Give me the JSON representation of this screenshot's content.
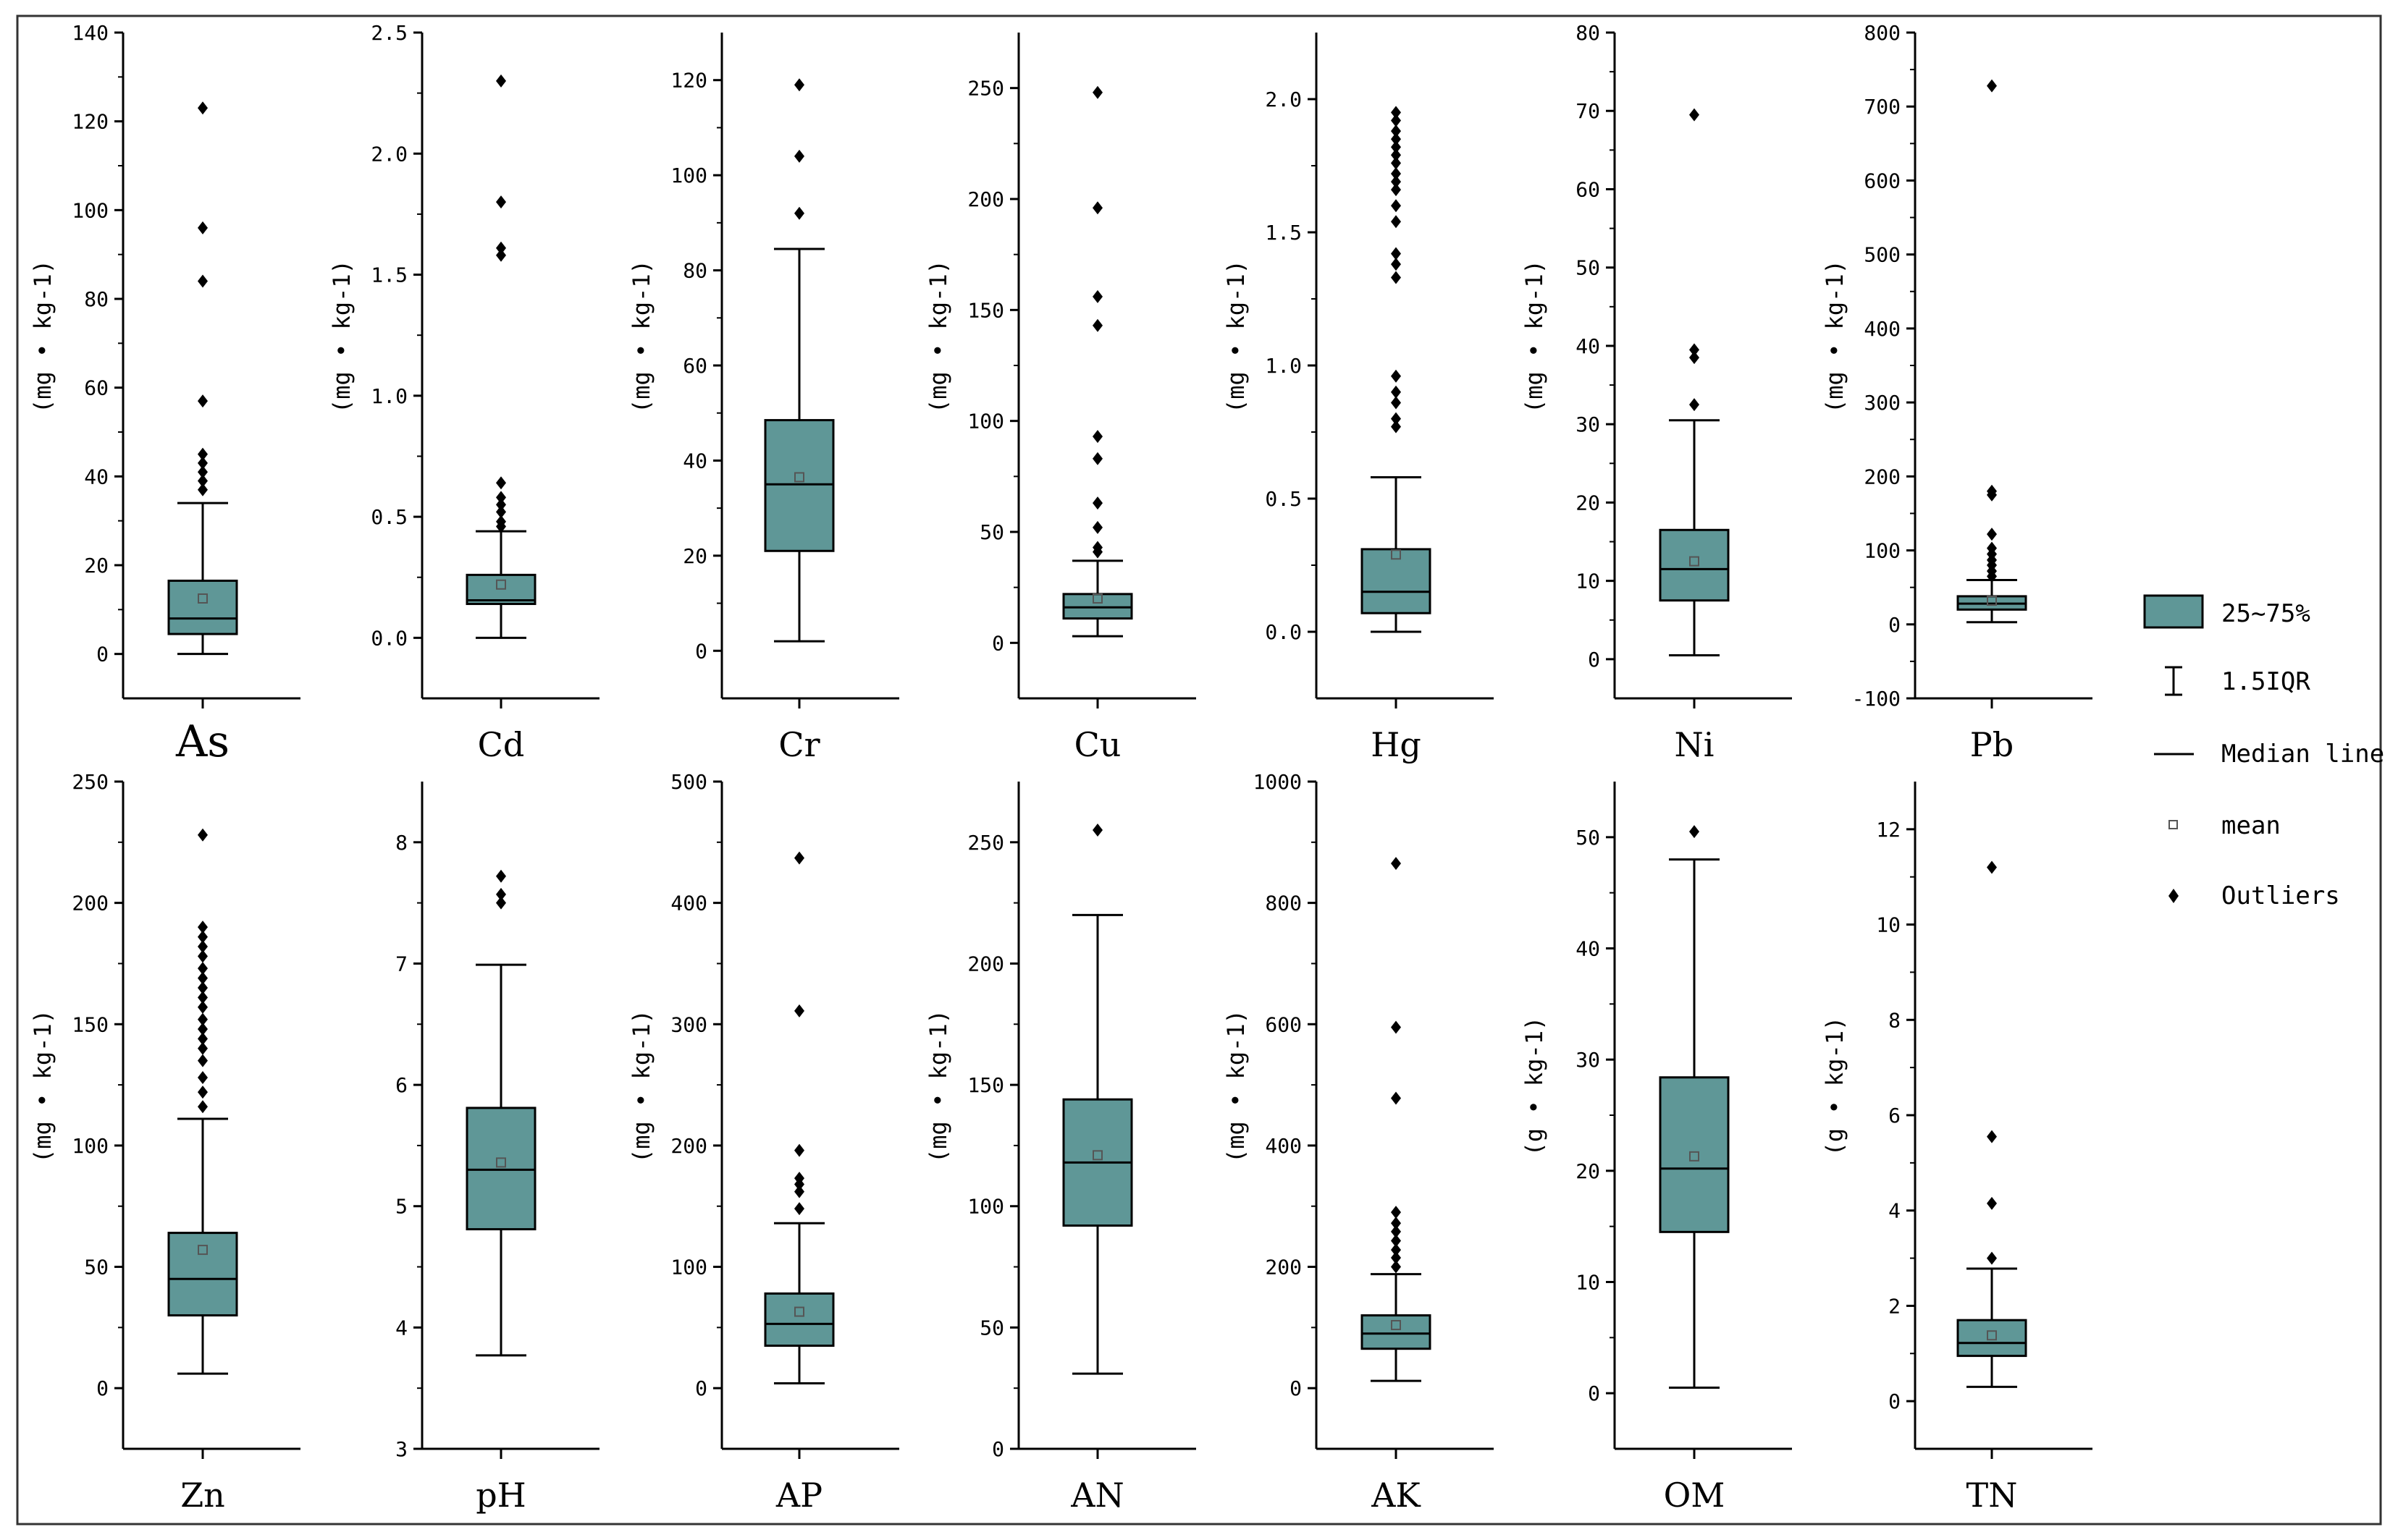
{
  "colors": {
    "box_fill": "#5f9797",
    "stroke": "#000000",
    "mean_marker": "#555555",
    "background": "#ffffff"
  },
  "legend": {
    "box_label": "25~75%",
    "iqr_label": "1.5IQR",
    "median_label": "Median line",
    "mean_label": "mean",
    "outlier_label": "Outliers"
  },
  "chart_data": [
    {
      "type": "box",
      "category": "As",
      "ylabel": "(mg • kg-1)",
      "ylim": [
        -10,
        140
      ],
      "ticks": [
        0,
        20,
        40,
        60,
        80,
        100,
        120,
        140
      ],
      "whisker_low": 0,
      "q1": 4.5,
      "median": 8,
      "q3": 16.5,
      "whisker_high": 34,
      "mean": 12.5,
      "outliers": [
        37,
        39,
        41,
        43,
        45,
        57,
        84,
        96,
        123
      ]
    },
    {
      "type": "box",
      "category": "Cd",
      "ylabel": "(mg • kg-1)",
      "ylim": [
        -0.25,
        2.5
      ],
      "ticks": [
        0.0,
        0.5,
        1.0,
        1.5,
        2.0,
        2.5
      ],
      "whisker_low": 0,
      "q1": 0.14,
      "median": 0.155,
      "q3": 0.26,
      "whisker_high": 0.44,
      "mean": 0.22,
      "outliers": [
        0.46,
        0.48,
        0.52,
        0.55,
        0.58,
        0.64,
        1.58,
        1.61,
        1.8,
        2.3
      ]
    },
    {
      "type": "box",
      "category": "Cr",
      "ylabel": "(mg • kg-1)",
      "ylim": [
        -10,
        130
      ],
      "ticks": [
        0,
        20,
        40,
        60,
        80,
        100,
        120
      ],
      "whisker_low": 2,
      "q1": 21,
      "median": 35,
      "q3": 48.5,
      "whisker_high": 84.5,
      "mean": 36.5,
      "outliers": [
        92,
        104,
        119
      ]
    },
    {
      "type": "box",
      "category": "Cu",
      "ylabel": "(mg • kg-1)",
      "ylim": [
        -25,
        275
      ],
      "ticks": [
        0,
        50,
        100,
        150,
        200,
        250
      ],
      "whisker_low": 3,
      "q1": 11,
      "median": 16,
      "q3": 22,
      "whisker_high": 37,
      "mean": 20,
      "outliers": [
        41,
        43,
        52,
        63,
        83,
        93,
        143,
        156,
        196,
        248
      ]
    },
    {
      "type": "box",
      "category": "Hg",
      "ylabel": "(mg • kg-1)",
      "ylim": [
        -0.25,
        2.25
      ],
      "ticks": [
        0.0,
        0.5,
        1.0,
        1.5,
        2.0
      ],
      "whisker_low": 0,
      "q1": 0.07,
      "median": 0.15,
      "q3": 0.31,
      "whisker_high": 0.58,
      "mean": 0.29,
      "outliers": [
        0.77,
        0.8,
        0.86,
        0.9,
        0.96,
        1.33,
        1.38,
        1.42,
        1.54,
        1.6,
        1.66,
        1.69,
        1.72,
        1.76,
        1.79,
        1.82,
        1.85,
        1.88,
        1.92,
        1.95
      ]
    },
    {
      "type": "box",
      "category": "Ni",
      "ylabel": "(mg • kg-1)",
      "ylim": [
        -5,
        80
      ],
      "ticks": [
        0,
        10,
        20,
        30,
        40,
        50,
        60,
        70,
        80
      ],
      "whisker_low": 0.5,
      "q1": 7.5,
      "median": 11.5,
      "q3": 16.5,
      "whisker_high": 30.5,
      "mean": 12.5,
      "outliers": [
        32.5,
        38.5,
        39.5,
        69.5
      ]
    },
    {
      "type": "box",
      "category": "Pb",
      "ylabel": "(mg • kg-1)",
      "ylim": [
        -100,
        800
      ],
      "ticks": [
        -100,
        0,
        100,
        200,
        300,
        400,
        500,
        600,
        700,
        800
      ],
      "whisker_low": 3,
      "q1": 20,
      "median": 28,
      "q3": 38,
      "whisker_high": 60,
      "mean": 32,
      "outliers": [
        65,
        72,
        80,
        87,
        95,
        103,
        122,
        175,
        180,
        728
      ]
    },
    {
      "type": "box",
      "category": "Zn",
      "ylabel": "(mg • kg-1)",
      "ylim": [
        -25,
        250
      ],
      "ticks": [
        0,
        50,
        100,
        150,
        200,
        250
      ],
      "whisker_low": 6,
      "q1": 30,
      "median": 45,
      "q3": 64,
      "whisker_high": 111,
      "mean": 57,
      "outliers": [
        116,
        122,
        128,
        135,
        140,
        144,
        148,
        152,
        157,
        161,
        165,
        169,
        173,
        178,
        182,
        186,
        190,
        228
      ]
    },
    {
      "type": "box",
      "category": "pH",
      "ylabel": "",
      "ylim": [
        3,
        8.5
      ],
      "ticks": [
        3,
        4,
        5,
        6,
        7,
        8
      ],
      "whisker_low": 3.77,
      "q1": 4.81,
      "median": 5.3,
      "q3": 5.81,
      "whisker_high": 6.99,
      "mean": 5.36,
      "outliers": [
        7.5,
        7.57,
        7.72
      ]
    },
    {
      "type": "box",
      "category": "AP",
      "ylabel": "(mg • kg-1)",
      "ylim": [
        -50,
        500
      ],
      "ticks": [
        0,
        100,
        200,
        300,
        400,
        500
      ],
      "whisker_low": 4,
      "q1": 35,
      "median": 53,
      "q3": 78,
      "whisker_high": 136,
      "mean": 63,
      "outliers": [
        148,
        162,
        168,
        173,
        196,
        311,
        437
      ]
    },
    {
      "type": "box",
      "category": "AN",
      "ylabel": "(mg • kg-1)",
      "ylim": [
        0,
        275
      ],
      "ticks": [
        0,
        50,
        100,
        150,
        200,
        250
      ],
      "whisker_low": 31,
      "q1": 92,
      "median": 118,
      "q3": 144,
      "whisker_high": 220,
      "mean": 121,
      "outliers": [
        255
      ]
    },
    {
      "type": "box",
      "category": "AK",
      "ylabel": "(mg • kg-1)",
      "ylim": [
        -100,
        1000
      ],
      "ticks": [
        0,
        200,
        400,
        600,
        800,
        1000
      ],
      "whisker_low": 12,
      "q1": 65,
      "median": 90,
      "q3": 120,
      "whisker_high": 188,
      "mean": 104,
      "outliers": [
        200,
        215,
        228,
        243,
        258,
        272,
        290,
        478,
        595,
        865
      ]
    },
    {
      "type": "box",
      "category": "OM",
      "ylabel": "(g • kg-1)",
      "ylim": [
        -5,
        55
      ],
      "ticks": [
        0,
        10,
        20,
        30,
        40,
        50
      ],
      "whisker_low": 0.5,
      "q1": 14.5,
      "median": 20.2,
      "q3": 28.4,
      "whisker_high": 48,
      "mean": 21.3,
      "outliers": [
        50.5
      ]
    },
    {
      "type": "box",
      "category": "TN",
      "ylabel": "(g • kg-1)",
      "ylim": [
        -1,
        13
      ],
      "ticks": [
        0,
        2,
        4,
        6,
        8,
        10,
        12
      ],
      "whisker_low": 0.3,
      "q1": 0.95,
      "median": 1.22,
      "q3": 1.7,
      "whisker_high": 2.78,
      "mean": 1.38,
      "outliers": [
        3.0,
        4.15,
        5.55,
        11.2
      ]
    }
  ]
}
